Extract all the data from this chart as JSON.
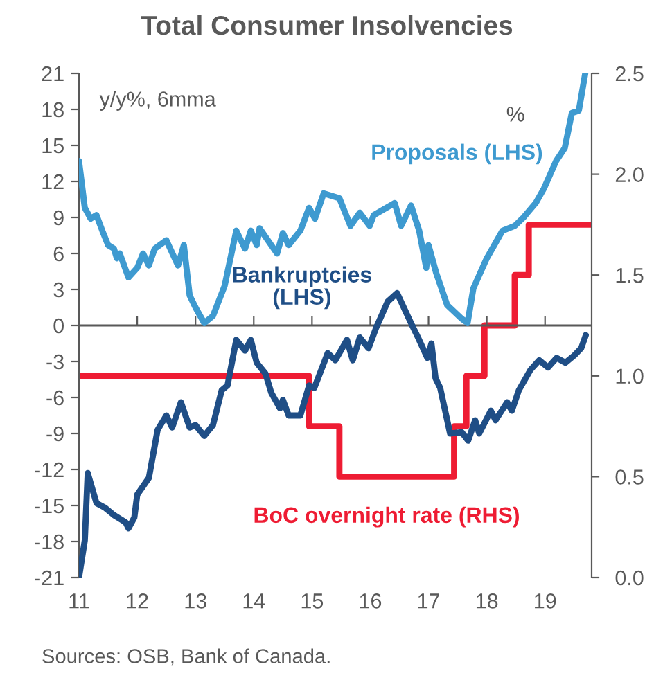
{
  "chart_data": {
    "type": "line",
    "title": "Total Consumer Insolvencies",
    "ylabel": "y/y%, 6mma",
    "y2label": "%",
    "annotations": [
      "Sources: OSB, Bank of Canada."
    ],
    "xlim": [
      11,
      19.8
    ],
    "xticks": [
      11,
      12,
      13,
      14,
      15,
      16,
      17,
      18,
      19
    ],
    "ylim": [
      -21,
      21
    ],
    "yticks": [
      -21,
      -18,
      -15,
      -12,
      -9,
      -6,
      -3,
      0,
      3,
      6,
      9,
      12,
      15,
      18,
      21
    ],
    "y2lim": [
      0,
      2.5
    ],
    "y2ticks": [
      {
        "value": 0,
        "label": "0.0"
      },
      {
        "value": 0.5,
        "label": "0.5"
      },
      {
        "value": 1,
        "label": "1.0"
      },
      {
        "value": 1.5,
        "label": "1.5"
      },
      {
        "value": 2,
        "label": "2.0"
      },
      {
        "value": 2.5,
        "label": "2.5"
      }
    ],
    "grid": false,
    "legend": false,
    "ref_lines": [
      {
        "axis": "y",
        "value": 0,
        "color": "#595959"
      }
    ],
    "series": [
      {
        "name": "Proposals (LHS)",
        "color": "#3e9ad0",
        "x": [
          11.0,
          11.1,
          11.2,
          11.3,
          11.4,
          11.5,
          11.6,
          11.65,
          11.7,
          11.85,
          12.0,
          12.1,
          12.2,
          12.3,
          12.5,
          12.7,
          12.8,
          12.9,
          13.0,
          13.15,
          13.3,
          13.5,
          13.7,
          13.85,
          13.95,
          14.05,
          14.1,
          14.4,
          14.5,
          14.6,
          14.8,
          14.95,
          15.05,
          15.2,
          15.47,
          15.66,
          15.82,
          15.99,
          16.06,
          16.42,
          16.53,
          16.7,
          16.84,
          16.96,
          17.0,
          17.13,
          17.32,
          17.56,
          17.67,
          17.77,
          18.0,
          18.27,
          18.48,
          18.63,
          18.84,
          18.98,
          19.19,
          19.34,
          19.46,
          19.58,
          19.69
        ],
        "values": [
          13.7,
          9.8,
          8.9,
          9.2,
          7.9,
          6.7,
          6.4,
          5.6,
          6.0,
          4.0,
          4.8,
          6.0,
          5.0,
          6.4,
          7.1,
          5.0,
          6.7,
          2.5,
          1.5,
          0.2,
          0.8,
          3.3,
          7.9,
          6.4,
          7.9,
          6.7,
          8.1,
          6.0,
          7.7,
          6.7,
          7.9,
          9.8,
          8.9,
          11.0,
          10.6,
          8.3,
          9.4,
          8.3,
          9.2,
          10.2,
          8.3,
          10.0,
          7.9,
          4.8,
          6.7,
          4.4,
          1.7,
          0.6,
          0.2,
          3.1,
          5.6,
          7.9,
          8.3,
          9.0,
          10.2,
          11.4,
          13.7,
          14.8,
          17.7,
          17.9,
          21.0
        ]
      },
      {
        "name": "Bankruptcies\n(LHS)",
        "color": "#1f4e86",
        "x": [
          11.0,
          11.1,
          11.15,
          11.3,
          11.45,
          11.6,
          11.8,
          11.85,
          11.95,
          12.0,
          12.2,
          12.35,
          12.5,
          12.6,
          12.75,
          12.9,
          13.0,
          13.15,
          13.3,
          13.45,
          13.55,
          13.7,
          13.85,
          13.95,
          14.05,
          14.2,
          14.3,
          14.45,
          14.5,
          14.6,
          14.8,
          14.95,
          15.04,
          15.27,
          15.4,
          15.6,
          15.7,
          15.82,
          15.97,
          16.1,
          16.3,
          16.46,
          16.7,
          16.82,
          16.98,
          17.05,
          17.12,
          17.2,
          17.37,
          17.57,
          17.68,
          17.8,
          17.87,
          18.07,
          18.15,
          18.35,
          18.43,
          18.55,
          18.75,
          18.9,
          19.05,
          19.2,
          19.35,
          19.5,
          19.62,
          19.7
        ],
        "values": [
          -21.0,
          -17.9,
          -12.3,
          -14.8,
          -15.2,
          -15.8,
          -16.4,
          -16.9,
          -16.0,
          -14.1,
          -12.7,
          -8.7,
          -7.5,
          -8.5,
          -6.4,
          -8.5,
          -8.3,
          -9.2,
          -8.3,
          -5.4,
          -5.0,
          -1.2,
          -2.1,
          -1.2,
          -3.1,
          -4.0,
          -5.6,
          -6.9,
          -6.2,
          -7.5,
          -7.5,
          -5.0,
          -5.2,
          -2.3,
          -2.9,
          -1.2,
          -2.9,
          -1.0,
          -1.9,
          -0.2,
          2.0,
          2.7,
          0.2,
          -1.0,
          -2.7,
          -1.5,
          -4.4,
          -5.2,
          -9.0,
          -8.9,
          -9.6,
          -7.9,
          -9.0,
          -7.1,
          -7.9,
          -6.4,
          -7.1,
          -5.4,
          -3.7,
          -2.9,
          -3.5,
          -2.7,
          -3.1,
          -2.5,
          -1.9,
          -0.8
        ]
      },
      {
        "name": "BoC overnight rate (RHS)",
        "color": "#ee1c33",
        "type": "step",
        "axis": "y2",
        "x": [
          11.0,
          14.95,
          15.47,
          17.44,
          17.65,
          17.96,
          18.48,
          18.72,
          19.8
        ],
        "values": [
          1.0,
          0.75,
          0.5,
          0.75,
          1.0,
          1.25,
          1.5,
          1.75,
          1.75
        ]
      }
    ]
  }
}
